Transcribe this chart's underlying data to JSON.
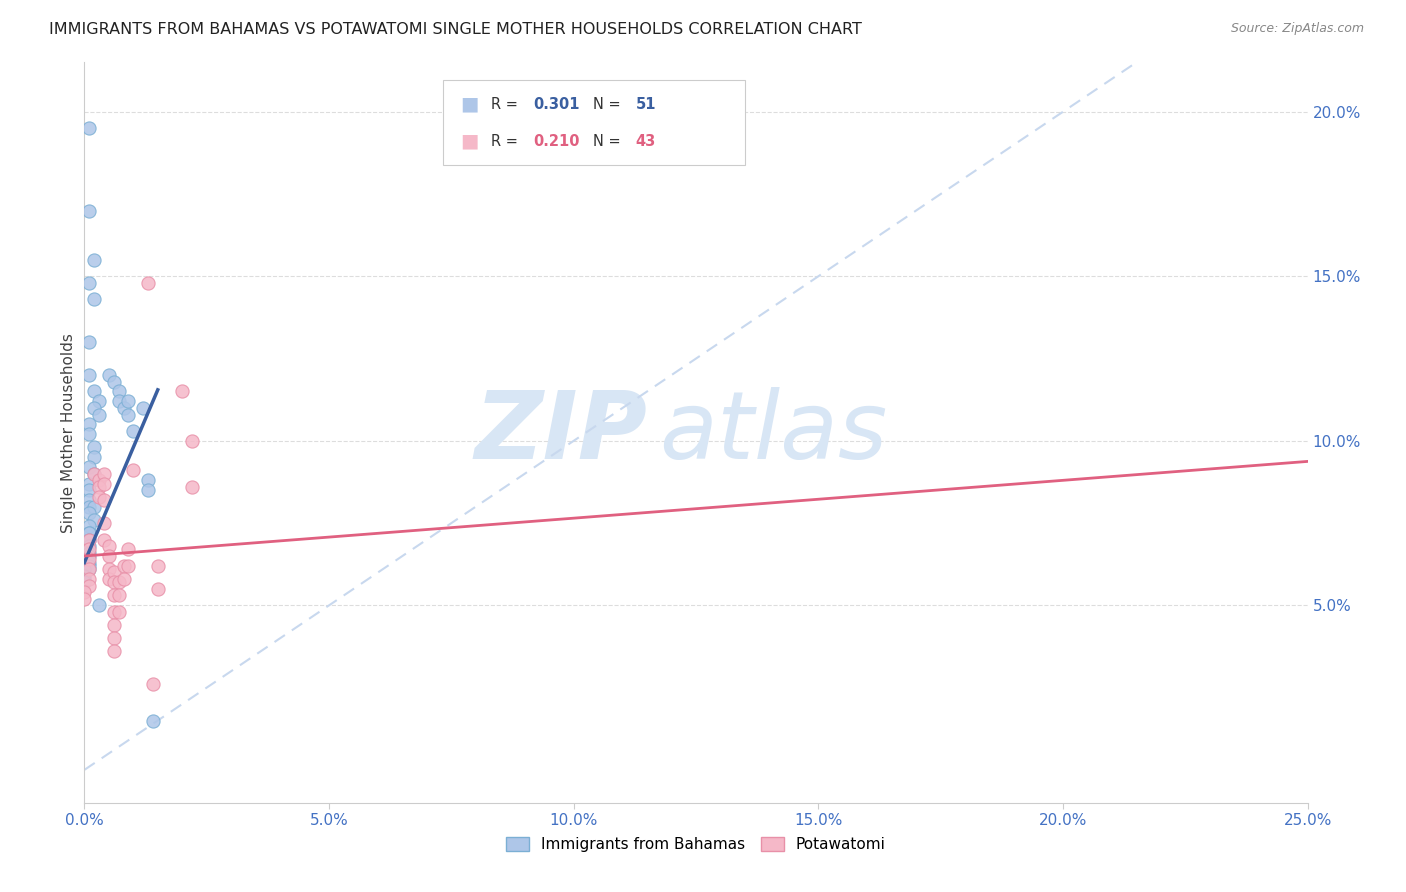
{
  "title": "IMMIGRANTS FROM BAHAMAS VS POTAWATOMI SINGLE MOTHER HOUSEHOLDS CORRELATION CHART",
  "source": "Source: ZipAtlas.com",
  "ylabel": "Single Mother Households",
  "xlim": [
    0.0,
    0.25
  ],
  "ylim": [
    -0.01,
    0.215
  ],
  "xticks": [
    0.0,
    0.05,
    0.1,
    0.15,
    0.2,
    0.25
  ],
  "xticklabels": [
    "0.0%",
    "5.0%",
    "10.0%",
    "15.0%",
    "20.0%",
    "25.0%"
  ],
  "yticks_right": [
    0.05,
    0.1,
    0.15,
    0.2
  ],
  "yticklabels_right": [
    "5.0%",
    "10.0%",
    "15.0%",
    "20.0%"
  ],
  "scatter_blue": [
    [
      0.001,
      0.195
    ],
    [
      0.001,
      0.17
    ],
    [
      0.002,
      0.155
    ],
    [
      0.001,
      0.148
    ],
    [
      0.002,
      0.143
    ],
    [
      0.001,
      0.13
    ],
    [
      0.001,
      0.12
    ],
    [
      0.002,
      0.115
    ],
    [
      0.003,
      0.112
    ],
    [
      0.002,
      0.11
    ],
    [
      0.003,
      0.108
    ],
    [
      0.001,
      0.105
    ],
    [
      0.001,
      0.102
    ],
    [
      0.002,
      0.098
    ],
    [
      0.002,
      0.095
    ],
    [
      0.001,
      0.092
    ],
    [
      0.002,
      0.09
    ],
    [
      0.001,
      0.087
    ],
    [
      0.001,
      0.085
    ],
    [
      0.001,
      0.082
    ],
    [
      0.001,
      0.08
    ],
    [
      0.002,
      0.08
    ],
    [
      0.001,
      0.078
    ],
    [
      0.002,
      0.076
    ],
    [
      0.001,
      0.074
    ],
    [
      0.001,
      0.072
    ],
    [
      0.001,
      0.072
    ],
    [
      0.001,
      0.07
    ],
    [
      0.001,
      0.068
    ],
    [
      0.001,
      0.066
    ],
    [
      0.001,
      0.065
    ],
    [
      0.001,
      0.063
    ],
    [
      0.001,
      0.062
    ],
    [
      0.001,
      0.061
    ],
    [
      0.0,
      0.061
    ],
    [
      0.0,
      0.059
    ],
    [
      0.0,
      0.058
    ],
    [
      0.0,
      0.057
    ],
    [
      0.005,
      0.12
    ],
    [
      0.006,
      0.118
    ],
    [
      0.007,
      0.115
    ],
    [
      0.007,
      0.112
    ],
    [
      0.008,
      0.11
    ],
    [
      0.009,
      0.112
    ],
    [
      0.009,
      0.108
    ],
    [
      0.01,
      0.103
    ],
    [
      0.012,
      0.11
    ],
    [
      0.013,
      0.088
    ],
    [
      0.013,
      0.085
    ],
    [
      0.014,
      0.015
    ],
    [
      0.003,
      0.05
    ]
  ],
  "scatter_pink": [
    [
      0.001,
      0.07
    ],
    [
      0.001,
      0.067
    ],
    [
      0.001,
      0.064
    ],
    [
      0.001,
      0.061
    ],
    [
      0.001,
      0.058
    ],
    [
      0.001,
      0.056
    ],
    [
      0.0,
      0.054
    ],
    [
      0.0,
      0.052
    ],
    [
      0.002,
      0.09
    ],
    [
      0.003,
      0.088
    ],
    [
      0.003,
      0.086
    ],
    [
      0.003,
      0.083
    ],
    [
      0.004,
      0.09
    ],
    [
      0.004,
      0.087
    ],
    [
      0.004,
      0.082
    ],
    [
      0.004,
      0.075
    ],
    [
      0.004,
      0.07
    ],
    [
      0.005,
      0.068
    ],
    [
      0.005,
      0.065
    ],
    [
      0.005,
      0.061
    ],
    [
      0.005,
      0.058
    ],
    [
      0.006,
      0.06
    ],
    [
      0.006,
      0.057
    ],
    [
      0.006,
      0.053
    ],
    [
      0.006,
      0.048
    ],
    [
      0.006,
      0.044
    ],
    [
      0.006,
      0.04
    ],
    [
      0.006,
      0.036
    ],
    [
      0.007,
      0.057
    ],
    [
      0.007,
      0.053
    ],
    [
      0.007,
      0.048
    ],
    [
      0.008,
      0.062
    ],
    [
      0.008,
      0.058
    ],
    [
      0.009,
      0.067
    ],
    [
      0.009,
      0.062
    ],
    [
      0.01,
      0.091
    ],
    [
      0.013,
      0.148
    ],
    [
      0.014,
      0.026
    ],
    [
      0.015,
      0.062
    ],
    [
      0.015,
      0.055
    ],
    [
      0.02,
      0.115
    ],
    [
      0.022,
      0.1
    ],
    [
      0.022,
      0.086
    ]
  ],
  "blue_scatter_color": "#aec6e8",
  "blue_scatter_edge": "#7bafd4",
  "pink_scatter_color": "#f5b8c8",
  "pink_scatter_edge": "#e890a8",
  "blue_line_color": "#3a5fa0",
  "pink_line_color": "#e06080",
  "diagonal_color": "#c8d8ee",
  "grid_color": "#dddddd",
  "watermark_zip": "ZIP",
  "watermark_atlas": "atlas",
  "watermark_color": "#d8e6f5",
  "bg_color": "#ffffff",
  "title_fontsize": 11.5,
  "axis_label_color_blue": "#4472c4",
  "right_tick_color": "#4472c4",
  "blue_line_xmax": 0.015,
  "pink_line_xmax": 0.25,
  "blue_intercept": 0.063,
  "blue_slope": 3.5,
  "pink_intercept": 0.065,
  "pink_slope": 0.115
}
